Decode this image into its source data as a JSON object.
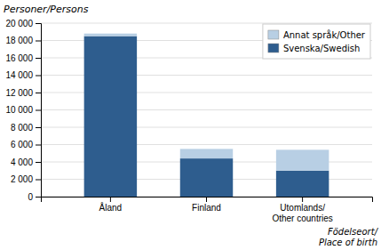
{
  "chart_data": {
    "type": "bar",
    "stacked": true,
    "categories": [
      "Åland",
      "Finland",
      "Utomlands/\nOther countries"
    ],
    "series": [
      {
        "name": "Svenska/Swedish",
        "color": "#2E5D8E",
        "values": [
          18500,
          4400,
          3000
        ]
      },
      {
        "name": "Annat språk/Other",
        "color": "#B8CFE4",
        "values": [
          300,
          1100,
          2400
        ]
      }
    ],
    "ylabel": "Personer/Persons",
    "xlabel": "Födelseort/\nPlace of birth",
    "ylim": [
      0,
      20000
    ],
    "yticks": [
      0,
      {
        "value": 2000,
        "label": "2 000"
      },
      {
        "value": 4000,
        "label": "4 000"
      },
      {
        "value": 6000,
        "label": "6 000"
      },
      {
        "value": 8000,
        "label": "8 000"
      },
      {
        "value": 10000,
        "label": "10 000"
      },
      {
        "value": 12000,
        "label": "12 000"
      },
      {
        "value": 14000,
        "label": "14 000"
      },
      {
        "value": 16000,
        "label": "16 000"
      },
      {
        "value": 18000,
        "label": "18 000"
      },
      {
        "value": 20000,
        "label": "20 000"
      }
    ],
    "grid": true,
    "legend": "upper right"
  }
}
